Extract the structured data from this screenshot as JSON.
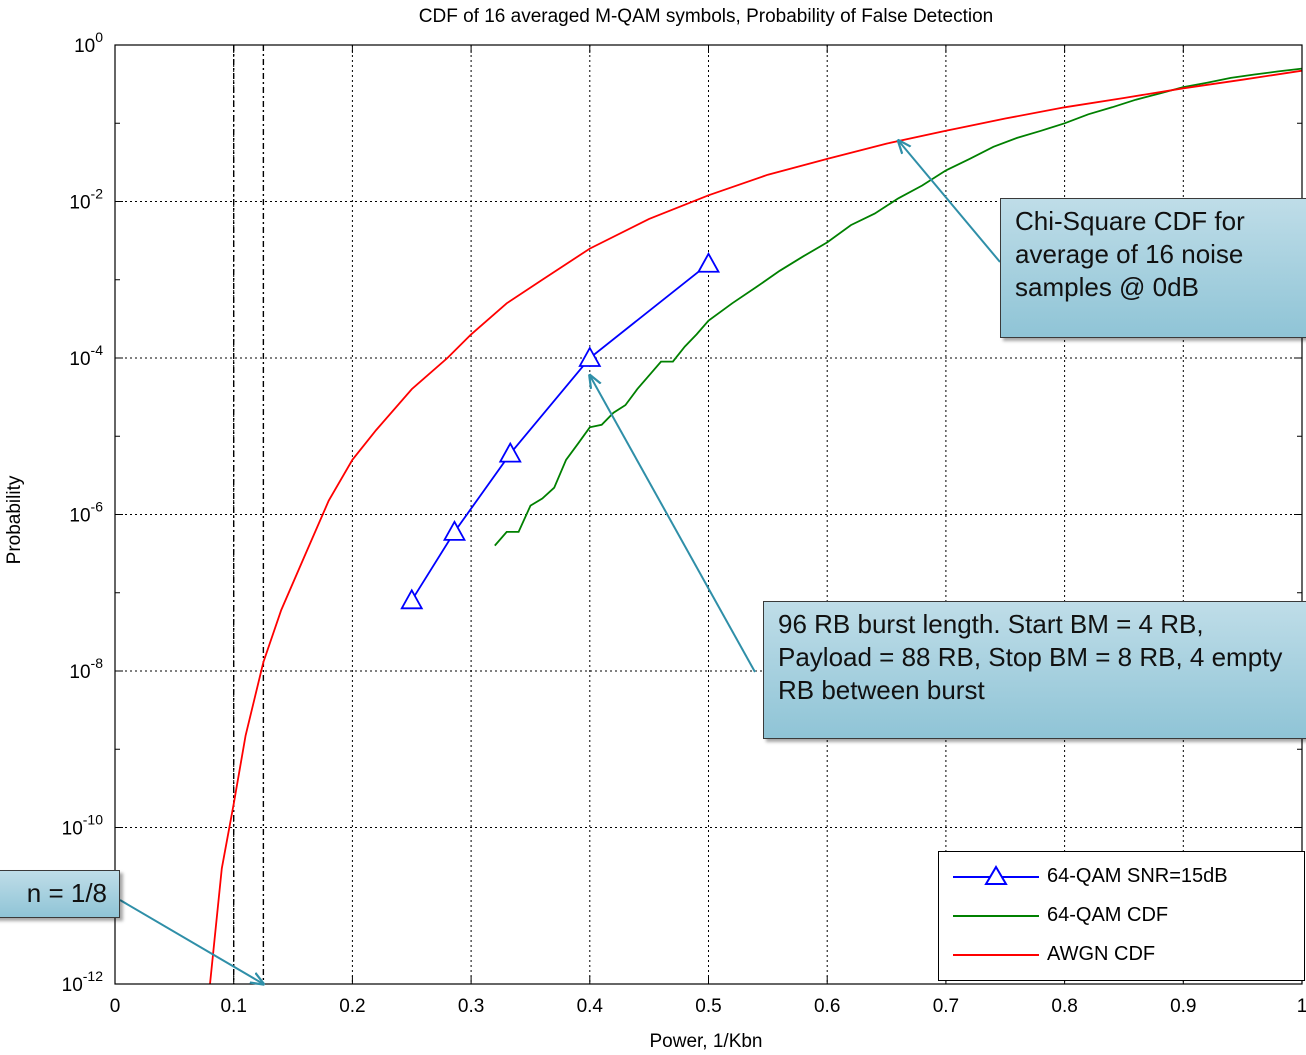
{
  "chart_data": {
    "type": "line",
    "title": "CDF of 16 averaged M-QAM symbols, Probability of False Detection",
    "xlabel": "Power, 1/Kbn",
    "ylabel": "Probability",
    "xlim": [
      0,
      1
    ],
    "ylim": [
      1e-12,
      1
    ],
    "yscale": "log",
    "grid": true,
    "x_ticks": [
      "0",
      "0.1",
      "0.2",
      "0.3",
      "0.4",
      "0.5",
      "0.6",
      "0.7",
      "0.8",
      "0.9",
      "1"
    ],
    "y_ticks": [
      {
        "base": "10",
        "exp": "0"
      },
      {
        "base": "10",
        "exp": "-2"
      },
      {
        "base": "10",
        "exp": "-4"
      },
      {
        "base": "10",
        "exp": "-6"
      },
      {
        "base": "10",
        "exp": "-8"
      },
      {
        "base": "10",
        "exp": "-10"
      },
      {
        "base": "10",
        "exp": "-12"
      }
    ],
    "vlines": [
      0.1,
      0.125
    ],
    "legend_position": "bottom-right",
    "series": [
      {
        "name": "64-QAM SNR=15dB",
        "color": "#0000ff",
        "marker": "triangle",
        "x": [
          0.25,
          0.286,
          0.333,
          0.4,
          0.5
        ],
        "y": [
          8e-08,
          6e-07,
          6e-06,
          0.0001,
          0.0016
        ]
      },
      {
        "name": "64-QAM CDF",
        "color": "#008000",
        "marker": "none",
        "x": [
          0.32,
          0.33,
          0.34,
          0.35,
          0.36,
          0.37,
          0.38,
          0.39,
          0.4,
          0.41,
          0.42,
          0.43,
          0.44,
          0.45,
          0.46,
          0.47,
          0.48,
          0.49,
          0.5,
          0.52,
          0.54,
          0.56,
          0.58,
          0.6,
          0.62,
          0.64,
          0.66,
          0.68,
          0.7,
          0.72,
          0.74,
          0.76,
          0.78,
          0.8,
          0.82,
          0.84,
          0.86,
          0.88,
          0.9,
          0.92,
          0.94,
          0.96,
          0.98,
          1.0
        ],
        "y": [
          4e-07,
          6e-07,
          6e-07,
          1.3e-06,
          1.6e-06,
          2.2e-06,
          5e-06,
          8e-06,
          1.3e-05,
          1.4e-05,
          2e-05,
          2.5e-05,
          4e-05,
          6e-05,
          9e-05,
          9e-05,
          0.00014,
          0.0002,
          0.0003,
          0.0005,
          0.0008,
          0.0013,
          0.002,
          0.003,
          0.005,
          0.007,
          0.011,
          0.016,
          0.025,
          0.035,
          0.05,
          0.065,
          0.08,
          0.1,
          0.13,
          0.16,
          0.2,
          0.24,
          0.29,
          0.33,
          0.38,
          0.42,
          0.46,
          0.5
        ]
      },
      {
        "name": "AWGN CDF",
        "color": "#ff0000",
        "marker": "none",
        "x": [
          0.08,
          0.09,
          0.1,
          0.11,
          0.125,
          0.14,
          0.16,
          0.18,
          0.2,
          0.22,
          0.25,
          0.28,
          0.3,
          0.33,
          0.36,
          0.4,
          0.45,
          0.5,
          0.55,
          0.6,
          0.65,
          0.7,
          0.75,
          0.8,
          0.85,
          0.9,
          0.95,
          1.0
        ],
        "y": [
          1e-12,
          3e-11,
          2e-10,
          1.5e-09,
          1.3e-08,
          6e-08,
          3e-07,
          1.5e-06,
          5e-06,
          1.2e-05,
          4e-05,
          0.0001,
          0.0002,
          0.0005,
          0.001,
          0.0025,
          0.006,
          0.012,
          0.022,
          0.035,
          0.055,
          0.08,
          0.115,
          0.16,
          0.21,
          0.28,
          0.36,
          0.47
        ]
      }
    ],
    "annotations": [
      {
        "text": "Chi-Square CDF for average of 16 noise samples @  0dB",
        "target": {
          "x": 0.66,
          "y": 0.06
        }
      },
      {
        "text": "96 RB burst length. Start BM = 4 RB, Payload = 88 RB, Stop BM = 8 RB, 4 empty RB between burst",
        "target": {
          "x": 0.4,
          "y": 6e-05
        }
      },
      {
        "text": "n = 1/8",
        "target": {
          "x": 0.125,
          "y": 1e-12
        }
      }
    ]
  },
  "colors": {
    "axis": "#000000",
    "grid": "#000000",
    "callout_fill": "#a8d2e0",
    "arrow": "#2f8fa8"
  }
}
